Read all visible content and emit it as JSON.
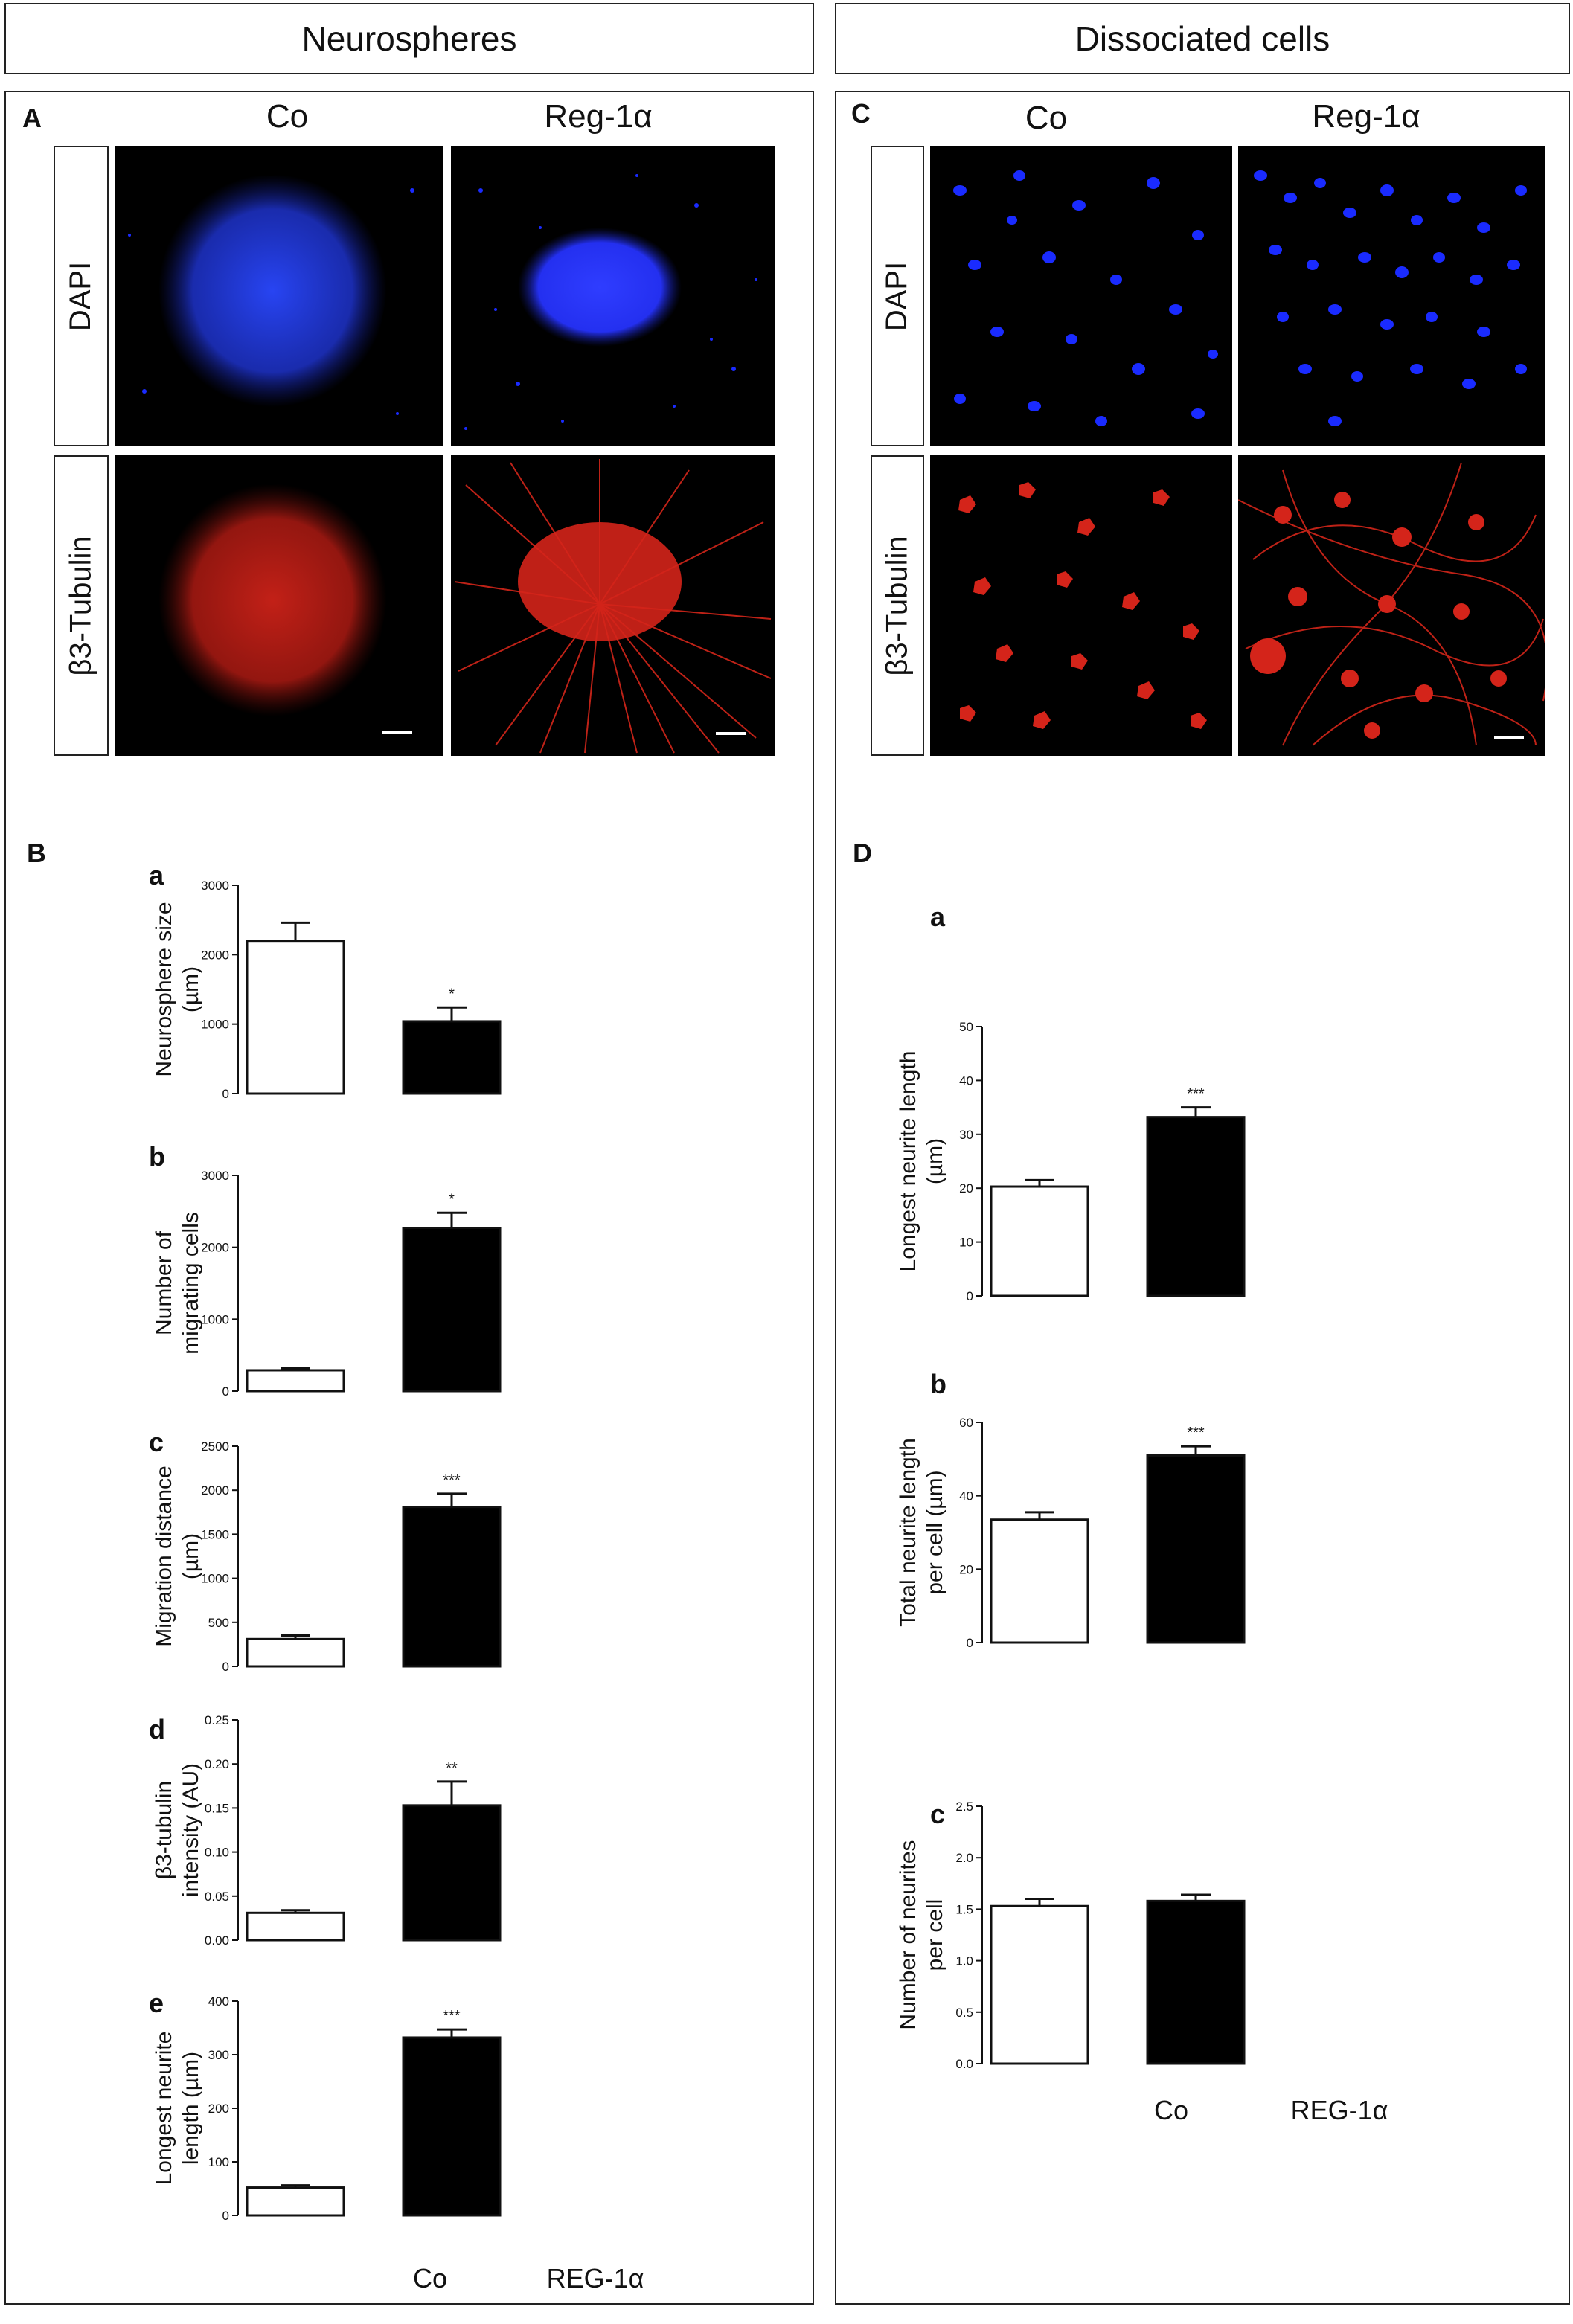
{
  "headers": {
    "left": "Neurospheres",
    "right": "Dissociated cells"
  },
  "panels": {
    "A": "A",
    "B": "B",
    "C": "C",
    "D": "D"
  },
  "micrographs": {
    "col_co": "Co",
    "col_reg": "Reg-1α",
    "row_dapi": "DAPI",
    "row_tubulin": "β3-Tubulin",
    "colors": {
      "dapi": "#1a2bff",
      "tubulin": "#ff2a1a"
    }
  },
  "sublabels": {
    "Ba": "a",
    "Bb": "b",
    "Bc": "c",
    "Bd": "d",
    "Be": "e",
    "Da": "a",
    "Db": "b",
    "Dc": "c"
  },
  "x_categories_left": [
    "Co",
    "REG-1α"
  ],
  "x_categories_right": [
    "Co",
    "REG-1α"
  ],
  "chart_data": [
    {
      "id": "Ba",
      "type": "bar",
      "categories": [
        "Co",
        "Reg-1α"
      ],
      "values": [
        2200,
        1040
      ],
      "errors": [
        260,
        200
      ],
      "ylabel_lines": [
        "Neurosphere size",
        "(µm)"
      ],
      "ylim": [
        0,
        3000
      ],
      "yticks": [
        "0",
        "1000",
        "2000",
        "3000"
      ],
      "ytick_values": [
        0,
        1000,
        2000,
        3000
      ],
      "significance": [
        "",
        "*"
      ],
      "fill": [
        "#ffffff",
        "#000000"
      ]
    },
    {
      "id": "Bb",
      "type": "bar",
      "categories": [
        "Co",
        "Reg-1α"
      ],
      "values": [
        290,
        2270
      ],
      "errors": [
        30,
        210
      ],
      "ylabel_lines": [
        "Number of",
        "migrating cells"
      ],
      "ylim": [
        0,
        3000
      ],
      "yticks": [
        "0",
        "1000",
        "2000",
        "3000"
      ],
      "ytick_values": [
        0,
        1000,
        2000,
        3000
      ],
      "significance": [
        "",
        "*"
      ],
      "fill": [
        "#ffffff",
        "#000000"
      ]
    },
    {
      "id": "Bc",
      "type": "bar",
      "categories": [
        "Co",
        "Reg-1α"
      ],
      "values": [
        310,
        1810
      ],
      "errors": [
        40,
        150
      ],
      "ylabel_lines": [
        "Migration distance",
        "(µm)"
      ],
      "ylim": [
        0,
        2500
      ],
      "yticks": [
        "0",
        "500",
        "1000",
        "1500",
        "2000",
        "2500"
      ],
      "ytick_values": [
        0,
        500,
        1000,
        1500,
        2000,
        2500
      ],
      "significance": [
        "",
        "***"
      ],
      "fill": [
        "#ffffff",
        "#000000"
      ]
    },
    {
      "id": "Bd",
      "type": "bar",
      "categories": [
        "Co",
        "Reg-1α"
      ],
      "values": [
        0.031,
        0.153
      ],
      "errors": [
        0.003,
        0.027
      ],
      "ylabel_lines": [
        "β3-tubulin",
        "intensity (AU)"
      ],
      "ylim": [
        0,
        0.25
      ],
      "yticks": [
        "0.00",
        "0.05",
        "0.10",
        "0.15",
        "0.20",
        "0.25"
      ],
      "ytick_values": [
        0,
        0.05,
        0.1,
        0.15,
        0.2,
        0.25
      ],
      "significance": [
        "",
        "**"
      ],
      "fill": [
        "#ffffff",
        "#000000"
      ]
    },
    {
      "id": "Be",
      "type": "bar",
      "categories": [
        "Co",
        "Reg-1α"
      ],
      "values": [
        52,
        332
      ],
      "errors": [
        4,
        15
      ],
      "ylabel_lines": [
        "Longest neurite",
        "length (µm)"
      ],
      "ylim": [
        0,
        400
      ],
      "yticks": [
        "0",
        "100",
        "200",
        "300",
        "400"
      ],
      "ytick_values": [
        0,
        100,
        200,
        300,
        400
      ],
      "significance": [
        "",
        "***"
      ],
      "fill": [
        "#ffffff",
        "#000000"
      ]
    },
    {
      "id": "Da",
      "type": "bar",
      "categories": [
        "Co",
        "Reg-1α"
      ],
      "values": [
        20.3,
        33.2
      ],
      "errors": [
        1.2,
        1.8
      ],
      "ylabel_lines": [
        "Longest neurite length",
        "(µm)"
      ],
      "ylim": [
        0,
        50
      ],
      "yticks": [
        "0",
        "10",
        "20",
        "30",
        "40",
        "50"
      ],
      "ytick_values": [
        0,
        10,
        20,
        30,
        40,
        50
      ],
      "significance": [
        "",
        "***"
      ],
      "fill": [
        "#ffffff",
        "#000000"
      ]
    },
    {
      "id": "Db",
      "type": "bar",
      "categories": [
        "Co",
        "Reg-1α"
      ],
      "values": [
        33.5,
        51
      ],
      "errors": [
        2.0,
        2.5
      ],
      "ylabel_lines": [
        "Total neurite length",
        "per cell (µm)"
      ],
      "ylim": [
        0,
        60
      ],
      "yticks": [
        "0",
        "20",
        "40",
        "60"
      ],
      "ytick_values": [
        0,
        20,
        40,
        60
      ],
      "significance": [
        "",
        "***"
      ],
      "fill": [
        "#ffffff",
        "#000000"
      ]
    },
    {
      "id": "Dc",
      "type": "bar",
      "categories": [
        "Co",
        "Reg-1α"
      ],
      "values": [
        1.53,
        1.58
      ],
      "errors": [
        0.07,
        0.06
      ],
      "ylabel_lines": [
        "Number of neurites",
        "per cell"
      ],
      "ylim": [
        0,
        2.5
      ],
      "yticks": [
        "0.0",
        "0.5",
        "1.0",
        "1.5",
        "2.0",
        "2.5"
      ],
      "ytick_values": [
        0,
        0.5,
        1,
        1.5,
        2,
        2.5
      ],
      "significance": [
        "",
        ""
      ],
      "fill": [
        "#ffffff",
        "#000000"
      ]
    }
  ]
}
